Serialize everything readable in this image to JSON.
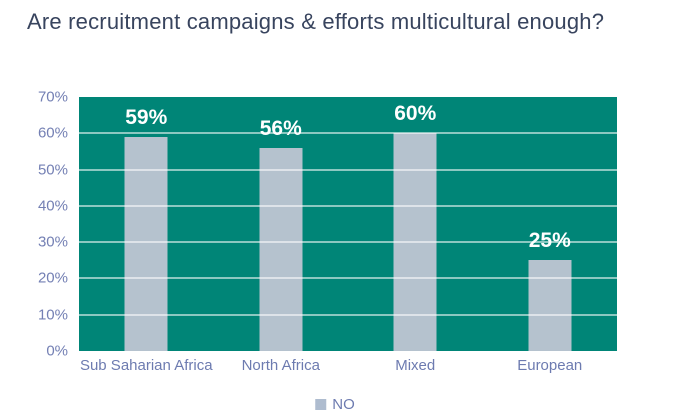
{
  "title": "Are recruitment campaigns & efforts multicultural enough?",
  "colors": {
    "title": "#38445e",
    "plot_bg": "#008577",
    "gridline": "rgba(255,255,255,0.55)",
    "bar": "#b5c2ce",
    "value_label": "#ffffff",
    "y_tick_label": "#7480b4",
    "category_label": "#6d7bb0",
    "legend_text": "#6d7bb0",
    "legend_swatch": "#aebccf"
  },
  "chart_data": {
    "type": "bar",
    "title": "Are recruitment campaigns & efforts multicultural enough?",
    "categories": [
      "Sub Saharian Africa",
      "North Africa",
      "Mixed",
      "European"
    ],
    "series": [
      {
        "name": "NO",
        "values": [
          59,
          56,
          60,
          25
        ]
      }
    ],
    "value_labels": [
      "59%",
      "56%",
      "60%",
      "25%"
    ],
    "xlabel": "",
    "ylabel": "",
    "ylim": [
      0,
      70
    ],
    "ytick_step": 10,
    "ytick_labels": [
      "0%",
      "10%",
      "20%",
      "30%",
      "40%",
      "50%",
      "60%",
      "70%"
    ],
    "grid": true,
    "legend": {
      "label": "NO",
      "position": "bottom"
    }
  }
}
